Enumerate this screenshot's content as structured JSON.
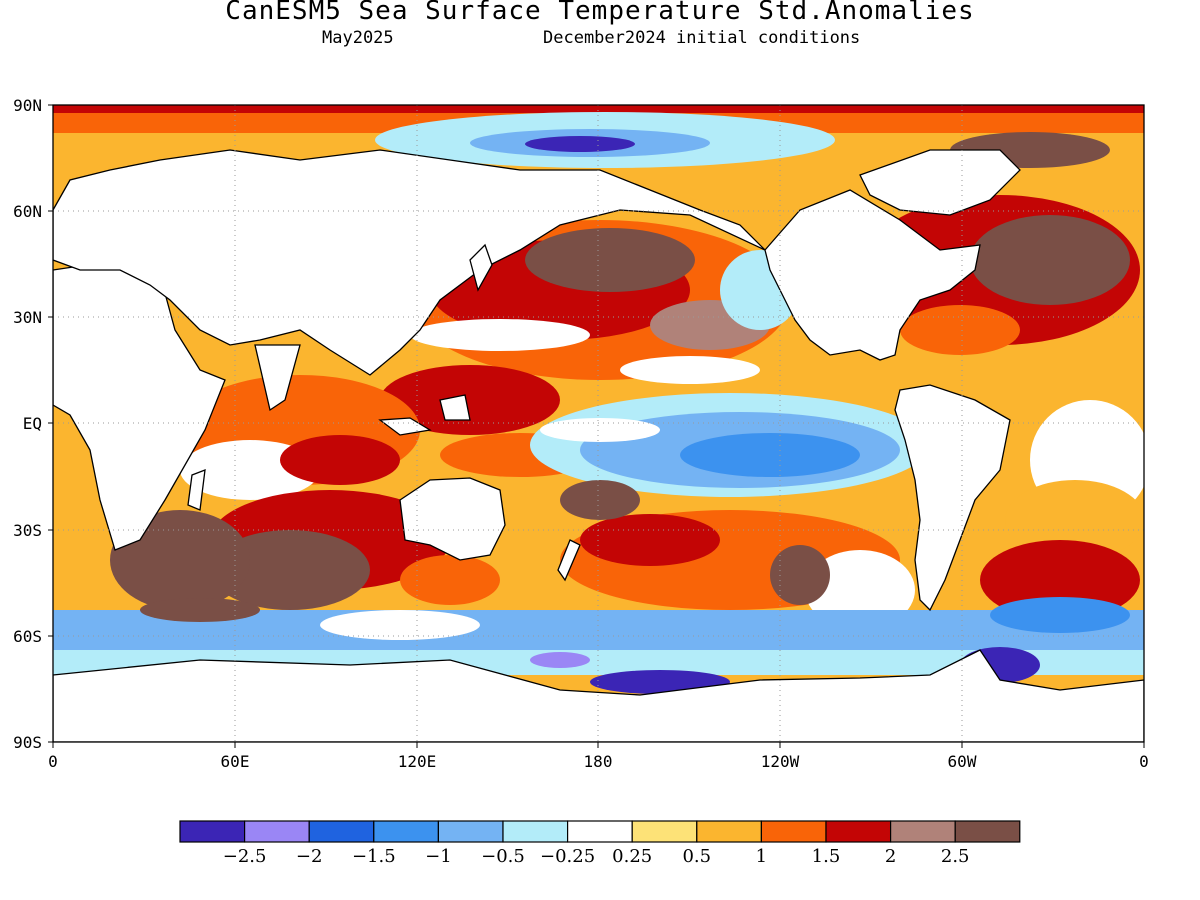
{
  "title": "CanESM5 Sea Surface Temperature Std.Anomalies",
  "subtitle_left": "May2025",
  "subtitle_right": "December2024 initial conditions",
  "lat_labels": [
    "90N",
    "60N",
    "30N",
    "EQ",
    "30S",
    "60S",
    "90S"
  ],
  "lon_labels": [
    "0",
    "60E",
    "120E",
    "180",
    "120W",
    "60W",
    "0"
  ],
  "colorbar": {
    "colors": [
      "#3b25b5",
      "#9a86f5",
      "#1f63e0",
      "#3c92ef",
      "#74b3f3",
      "#b3ecf9",
      "#ffffff",
      "#fde277",
      "#fbb52f",
      "#f96408",
      "#c30505",
      "#b08279",
      "#7a4f46"
    ],
    "labels": [
      "−2.5",
      "−2",
      "−1.5",
      "−1",
      "−0.5",
      "−0.25",
      "0.25",
      "0.5",
      "1",
      "1.5",
      "2",
      "2.5"
    ]
  },
  "map_colors": {
    "ocean_base": "#fbb52f",
    "land": "#ffffff",
    "coast": "#000000",
    "grid": "#9a9a9a"
  }
}
